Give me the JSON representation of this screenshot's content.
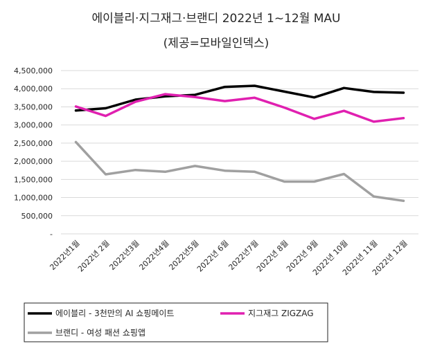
{
  "chart_data": {
    "type": "line",
    "title": "에이블리·지그재그·브랜디 2022년 1~12월 MAU",
    "subtitle": "(제공=모바일인덱스)",
    "categories": [
      "2022년1월",
      "2022년 2월",
      "2022년3월",
      "2022년4월",
      "2022년5월",
      "2022년 6월",
      "2022년7월",
      "2022년 8월",
      "2022년 9월",
      "2022년 10월",
      "2022년 11월",
      "2022년 12월"
    ],
    "y_ticks": [
      "4,500,000",
      "4,000,000",
      "3,500,000",
      "3,000,000",
      "2,500,000",
      "2,000,000",
      "1,500,000",
      "1,000,000",
      "500,000",
      "-"
    ],
    "ylim": [
      0,
      4500000
    ],
    "series": [
      {
        "name": "에이블리 - 3천만의 AI 쇼핑메이트",
        "color": "#000000",
        "values": [
          3400000,
          3460000,
          3700000,
          3790000,
          3830000,
          4050000,
          4080000,
          3920000,
          3760000,
          4020000,
          3910000,
          3890000
        ]
      },
      {
        "name": "지그재그 ZIGZAG",
        "color": "#E020B0",
        "values": [
          3510000,
          3250000,
          3640000,
          3850000,
          3770000,
          3660000,
          3750000,
          3480000,
          3170000,
          3390000,
          3090000,
          3190000
        ]
      },
      {
        "name": "브랜디 - 여성 패션 쇼핑앱",
        "color": "#A0A0A0",
        "values": [
          2530000,
          1640000,
          1760000,
          1710000,
          1870000,
          1740000,
          1710000,
          1440000,
          1440000,
          1650000,
          1030000,
          910000
        ]
      }
    ],
    "grid": true,
    "legend_position": "bottom"
  }
}
